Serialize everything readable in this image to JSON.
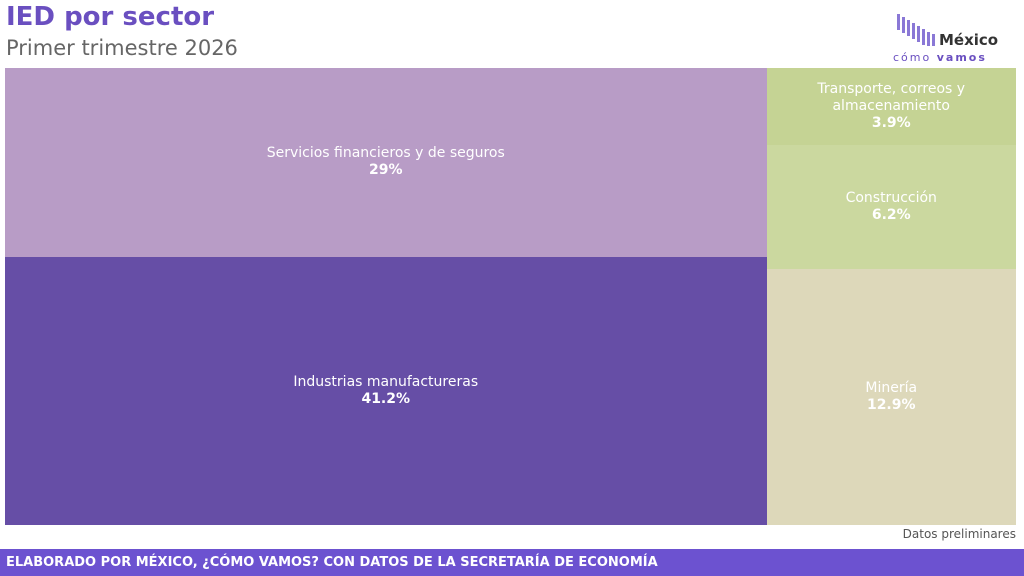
{
  "chart_data": {
    "type": "treemap",
    "title": "IED por sector",
    "subtitle": "Primer trimestre 2026",
    "categories": [
      "Servicios financieros y de seguros",
      "Industrias manufactureras",
      "Transporte, correos y almacenamiento",
      "Construcción",
      "Minería"
    ],
    "values": [
      29,
      41.2,
      3.9,
      6.2,
      12.9
    ],
    "value_labels": [
      "29%",
      "41.2%",
      "3.9%",
      "6.2%",
      "12.9%"
    ],
    "colors": [
      "#b89cc6",
      "#664ea6",
      "#c5d394",
      "#cbd89f",
      "#ddd8ba"
    ],
    "note": "Datos preliminares"
  },
  "logo": {
    "name": "México",
    "tagline_1": "cómo",
    "tagline_2": "vamos"
  },
  "footer": "ELABORADO POR MÉXICO, ¿CÓMO VAMOS? CON DATOS DE LA SECRETARÍA DE ECONOMÍA"
}
